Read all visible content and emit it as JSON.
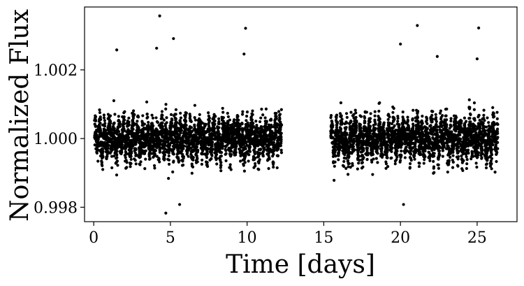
{
  "chart_data": {
    "type": "scatter",
    "title": "",
    "xlabel": "Time [days]",
    "ylabel": "Normalized Flux",
    "xlim": [
      -0.6,
      27.6
    ],
    "ylim": [
      0.99758,
      1.00383
    ],
    "xticks": [
      0,
      5,
      10,
      15,
      20,
      25
    ],
    "xtick_labels": [
      "0",
      "5",
      "10",
      "15",
      "20",
      "25"
    ],
    "yticks": [
      0.998,
      1.0,
      1.002
    ],
    "ytick_labels": [
      "0.998",
      "1.000",
      "1.002"
    ],
    "grid": false,
    "legend": "none",
    "marker_color": "#000000",
    "segments": [
      {
        "x_start": 0.05,
        "x_end": 12.25,
        "cadence_days": 0.0045,
        "median_flux": 1.0,
        "scatter_rms": 0.00036,
        "oscillation_amplitude": 0.00035,
        "oscillation_period_days": 0.31
      },
      {
        "x_start": 15.45,
        "x_end": 26.35,
        "cadence_days": 0.0045,
        "median_flux": 1.0,
        "scatter_rms": 0.00036,
        "oscillation_amplitude": 0.00035,
        "oscillation_period_days": 0.31
      }
    ],
    "outliers": [
      {
        "x": 4.3,
        "y": 1.00357
      },
      {
        "x": 4.1,
        "y": 1.00263
      },
      {
        "x": 5.2,
        "y": 1.00291
      },
      {
        "x": 9.9,
        "y": 1.00321
      },
      {
        "x": 9.8,
        "y": 1.00246
      },
      {
        "x": 1.5,
        "y": 1.00258
      },
      {
        "x": 4.7,
        "y": 0.99783
      },
      {
        "x": 5.6,
        "y": 0.99808
      },
      {
        "x": 20.0,
        "y": 1.00275
      },
      {
        "x": 20.2,
        "y": 0.99808
      },
      {
        "x": 21.1,
        "y": 1.00329
      },
      {
        "x": 22.4,
        "y": 1.00239
      },
      {
        "x": 25.1,
        "y": 1.00322
      },
      {
        "x": 25.0,
        "y": 1.00232
      }
    ]
  }
}
